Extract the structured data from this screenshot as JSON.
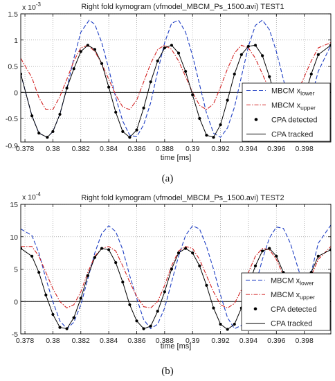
{
  "chart_data": [
    {
      "type": "line",
      "title": "Right fold kymogram (vfmodel_MBCM_Ps_1500.avi) TEST1",
      "xlabel": "time [ms]",
      "ylabel": "",
      "y_multiplier": "x 10",
      "y_exponent": "-3",
      "caption": "(a)",
      "xlim": [
        0.3777,
        0.3999
      ],
      "ylim": [
        -0.95,
        1.5
      ],
      "xticks": [
        0.378,
        0.38,
        0.382,
        0.384,
        0.386,
        0.388,
        0.39,
        0.392,
        0.394,
        0.396,
        0.398
      ],
      "xtick_labels": [
        "0.378",
        "0.38",
        "0.382",
        "0.384",
        "0.386",
        "0.388",
        "0.39",
        "0.392",
        "0.394",
        "0.396",
        "0.398"
      ],
      "yticks": [
        -0.5,
        0,
        0.5,
        1,
        1.5
      ],
      "ytick_labels": [
        "-0.5",
        "0",
        "0.5",
        "1",
        "1.5"
      ],
      "ytick_extra_bottom": "-0.9",
      "grid": true,
      "legend_position": "right",
      "period": 0.00615,
      "series": [
        {
          "name": "MBCM x",
          "subscript": "lower",
          "color": "#1f3fc4",
          "style": "dashed",
          "x": [
            0.3777,
            0.3785,
            0.379,
            0.3796,
            0.38,
            0.3805,
            0.381,
            0.3815,
            0.382,
            0.3826,
            0.383,
            0.3835,
            0.384,
            0.3845,
            0.385,
            0.3855,
            0.386,
            0.3865,
            0.387,
            0.3875,
            0.388,
            0.3885,
            0.389,
            0.3895,
            0.39,
            0.3905,
            0.391,
            0.3915,
            0.392,
            0.3925,
            0.393,
            0.3935,
            0.394,
            0.3945,
            0.395,
            0.3955,
            0.396,
            0.3965,
            0.397,
            0.3975,
            0.398,
            0.3985,
            0.399,
            0.3999
          ],
          "y": [
            0.35,
            -0.45,
            -0.78,
            -0.86,
            -0.75,
            -0.42,
            0.08,
            0.65,
            1.15,
            1.38,
            1.3,
            0.95,
            0.45,
            -0.1,
            -0.55,
            -0.82,
            -0.85,
            -0.62,
            -0.2,
            0.4,
            0.95,
            1.32,
            1.38,
            1.15,
            0.7,
            0.15,
            -0.4,
            -0.78,
            -0.86,
            -0.68,
            -0.28,
            0.3,
            0.88,
            1.28,
            1.38,
            1.2,
            0.78,
            0.25,
            -0.3,
            -0.7,
            -0.62,
            -0.1,
            0.4,
            0.9
          ]
        },
        {
          "name": "MBCM x",
          "subscript": "upper",
          "color": "#d22020",
          "style": "dashdot",
          "x": [
            0.3777,
            0.3785,
            0.379,
            0.3795,
            0.38,
            0.3805,
            0.381,
            0.3815,
            0.382,
            0.3825,
            0.383,
            0.3835,
            0.384,
            0.3845,
            0.385,
            0.3855,
            0.386,
            0.3865,
            0.387,
            0.3875,
            0.388,
            0.3885,
            0.389,
            0.3895,
            0.39,
            0.3905,
            0.391,
            0.3915,
            0.392,
            0.3925,
            0.393,
            0.3935,
            0.394,
            0.3945,
            0.395,
            0.3955,
            0.396,
            0.3965,
            0.397,
            0.3975,
            0.398,
            0.3985,
            0.399,
            0.3999
          ],
          "y": [
            0.65,
            0.28,
            -0.1,
            -0.33,
            -0.33,
            -0.08,
            0.25,
            0.6,
            0.85,
            0.9,
            0.78,
            0.55,
            0.25,
            -0.05,
            -0.28,
            -0.33,
            -0.15,
            0.2,
            0.55,
            0.82,
            0.9,
            0.82,
            0.6,
            0.3,
            0.0,
            -0.25,
            -0.33,
            -0.22,
            0.1,
            0.45,
            0.75,
            0.9,
            0.85,
            0.65,
            0.35,
            0.05,
            -0.22,
            -0.33,
            -0.25,
            0.0,
            0.3,
            0.6,
            0.85,
            0.95
          ]
        },
        {
          "name": "CPA detected",
          "color": "#000000",
          "style": "markers",
          "x": [
            0.3777,
            0.3785,
            0.379,
            0.3796,
            0.38,
            0.3805,
            0.381,
            0.3815,
            0.382,
            0.3825,
            0.383,
            0.3835,
            0.384,
            0.3845,
            0.385,
            0.3855,
            0.386,
            0.3865,
            0.387,
            0.3875,
            0.388,
            0.3885,
            0.389,
            0.3895,
            0.39,
            0.3905,
            0.391,
            0.3915,
            0.392,
            0.3925,
            0.393,
            0.3935,
            0.394,
            0.3945,
            0.395,
            0.3955,
            0.396,
            0.3965,
            0.397,
            0.3975,
            0.398,
            0.3985,
            0.399,
            0.3999
          ],
          "y": [
            0.35,
            -0.45,
            -0.78,
            -0.86,
            -0.75,
            -0.42,
            0.08,
            0.45,
            0.78,
            0.9,
            0.82,
            0.55,
            0.1,
            -0.38,
            -0.75,
            -0.86,
            -0.72,
            -0.3,
            0.2,
            0.6,
            0.85,
            0.9,
            0.75,
            0.4,
            -0.05,
            -0.5,
            -0.82,
            -0.86,
            -0.62,
            -0.15,
            0.35,
            0.72,
            0.88,
            0.9,
            0.7,
            0.3,
            -0.15,
            -0.58,
            -0.8,
            -0.62,
            -0.1,
            0.35,
            0.72,
            0.9
          ]
        },
        {
          "name": "CPA tracked",
          "color": "#000000",
          "style": "solid",
          "x": [
            0.3777,
            0.3785,
            0.379,
            0.3796,
            0.38,
            0.3805,
            0.381,
            0.3815,
            0.382,
            0.3825,
            0.383,
            0.3835,
            0.384,
            0.3845,
            0.385,
            0.3855,
            0.386,
            0.3865,
            0.387,
            0.3875,
            0.388,
            0.3885,
            0.389,
            0.3895,
            0.39,
            0.3905,
            0.391,
            0.3915,
            0.392,
            0.3925,
            0.393,
            0.3935,
            0.394,
            0.3945,
            0.395,
            0.3955,
            0.396,
            0.3965,
            0.397,
            0.3975,
            0.398,
            0.3985,
            0.399,
            0.3999
          ],
          "y": [
            0.35,
            -0.45,
            -0.78,
            -0.86,
            -0.75,
            -0.42,
            0.08,
            0.45,
            0.78,
            0.9,
            0.82,
            0.55,
            0.1,
            -0.38,
            -0.75,
            -0.86,
            -0.72,
            -0.3,
            0.2,
            0.6,
            0.85,
            0.9,
            0.75,
            0.4,
            -0.05,
            -0.5,
            -0.82,
            -0.86,
            -0.62,
            -0.15,
            0.35,
            0.72,
            0.88,
            0.9,
            0.7,
            0.3,
            -0.15,
            -0.58,
            -0.8,
            -0.62,
            -0.1,
            0.35,
            0.72,
            0.9
          ]
        }
      ]
    },
    {
      "type": "line",
      "title": "Right fold kymogram (vfmodel_MBCM_Ps_1500.avi) TEST2",
      "xlabel": "time [ms]",
      "ylabel": "",
      "y_multiplier": "x 10",
      "y_exponent": "-4",
      "caption": "(b)",
      "xlim": [
        0.3777,
        0.3999
      ],
      "ylim": [
        -5,
        15
      ],
      "xticks": [
        0.378,
        0.38,
        0.382,
        0.384,
        0.386,
        0.388,
        0.39,
        0.392,
        0.394,
        0.396,
        0.398
      ],
      "xtick_labels": [
        "0.378",
        "0.38",
        "0.382",
        "0.384",
        "0.386",
        "0.388",
        "0.39",
        "0.392",
        "0.394",
        "0.396",
        "0.398"
      ],
      "yticks": [
        -5,
        0,
        5,
        10,
        15
      ],
      "ytick_labels": [
        "-5",
        "0",
        "5",
        "10",
        "15"
      ],
      "grid": true,
      "legend_position": "bottom-right",
      "series": [
        {
          "name": "MBCM x",
          "subscript": "lower",
          "color": "#1f3fc4",
          "style": "dashed",
          "x": [
            0.3777,
            0.3785,
            0.379,
            0.3795,
            0.38,
            0.3805,
            0.381,
            0.3815,
            0.382,
            0.3825,
            0.383,
            0.3835,
            0.384,
            0.3845,
            0.385,
            0.3855,
            0.386,
            0.3865,
            0.387,
            0.3875,
            0.388,
            0.3885,
            0.389,
            0.3895,
            0.39,
            0.3905,
            0.391,
            0.3915,
            0.392,
            0.3925,
            0.393,
            0.3935,
            0.394,
            0.3945,
            0.395,
            0.3955,
            0.396,
            0.3965,
            0.397,
            0.3975,
            0.398,
            0.3985,
            0.399,
            0.3999
          ],
          "y": [
            11.2,
            10.2,
            7.5,
            3.5,
            0.0,
            -3.0,
            -4.2,
            -3.2,
            -0.5,
            3.5,
            7.5,
            10.5,
            11.7,
            10.8,
            8.0,
            4.0,
            0.5,
            -2.8,
            -4.2,
            -3.5,
            -1.0,
            3.0,
            7.0,
            10.2,
            11.7,
            11.2,
            8.5,
            5.0,
            1.0,
            -2.5,
            -4.2,
            -3.7,
            -1.5,
            2.5,
            6.5,
            9.8,
            11.5,
            11.3,
            9.0,
            5.5,
            2.0,
            4.5,
            9.0,
            11.8
          ]
        },
        {
          "name": "MBCM x",
          "subscript": "upper",
          "color": "#d22020",
          "style": "dashdot",
          "x": [
            0.3777,
            0.3785,
            0.379,
            0.3795,
            0.38,
            0.3805,
            0.381,
            0.3815,
            0.382,
            0.3825,
            0.383,
            0.3835,
            0.384,
            0.3845,
            0.385,
            0.3855,
            0.386,
            0.3865,
            0.387,
            0.3875,
            0.388,
            0.3885,
            0.389,
            0.3895,
            0.39,
            0.3905,
            0.391,
            0.3915,
            0.392,
            0.3925,
            0.393,
            0.3935,
            0.394,
            0.3945,
            0.395,
            0.3955,
            0.396,
            0.3965,
            0.397,
            0.3975,
            0.398,
            0.3985,
            0.399,
            0.3999
          ],
          "y": [
            8.5,
            8.5,
            7.0,
            4.5,
            2.0,
            0.0,
            -1.0,
            -0.5,
            1.5,
            4.5,
            7.0,
            8.2,
            8.5,
            7.8,
            5.5,
            3.0,
            0.8,
            -0.8,
            -1.0,
            0.0,
            2.5,
            5.5,
            7.8,
            8.5,
            8.2,
            6.5,
            4.0,
            1.5,
            -0.5,
            -1.0,
            -0.3,
            1.8,
            4.5,
            7.0,
            8.2,
            8.0,
            6.5,
            4.0,
            1.5,
            0.0,
            1.5,
            4.0,
            6.5,
            8.5
          ]
        },
        {
          "name": "CPA detected",
          "color": "#000000",
          "style": "markers",
          "x": [
            0.3777,
            0.3785,
            0.379,
            0.3795,
            0.38,
            0.3805,
            0.381,
            0.3815,
            0.382,
            0.3825,
            0.383,
            0.3835,
            0.384,
            0.3845,
            0.385,
            0.3855,
            0.386,
            0.3865,
            0.387,
            0.3875,
            0.388,
            0.3885,
            0.389,
            0.3895,
            0.39,
            0.3905,
            0.391,
            0.3915,
            0.392,
            0.3925,
            0.393,
            0.3935,
            0.394,
            0.3945,
            0.395,
            0.3955,
            0.396,
            0.3965,
            0.397,
            0.3975,
            0.398,
            0.3985,
            0.399,
            0.3999
          ],
          "y": [
            8.2,
            7.0,
            4.5,
            1.0,
            -2.0,
            -4.0,
            -4.2,
            -2.5,
            0.5,
            4.0,
            6.8,
            8.2,
            8.0,
            6.0,
            3.0,
            -0.5,
            -3.0,
            -4.2,
            -3.8,
            -1.5,
            1.5,
            5.0,
            7.5,
            8.2,
            7.5,
            5.5,
            2.5,
            -1.0,
            -3.5,
            -4.3,
            -3.5,
            -1.0,
            2.5,
            5.5,
            7.8,
            8.2,
            7.0,
            4.5,
            1.5,
            -1.5,
            1.0,
            4.5,
            7.0,
            8.0
          ]
        },
        {
          "name": "CPA tracked",
          "color": "#000000",
          "style": "solid",
          "x": [
            0.3777,
            0.3785,
            0.379,
            0.3795,
            0.38,
            0.3805,
            0.381,
            0.3815,
            0.382,
            0.3825,
            0.383,
            0.3835,
            0.384,
            0.3845,
            0.385,
            0.3855,
            0.386,
            0.3865,
            0.387,
            0.3875,
            0.388,
            0.3885,
            0.389,
            0.3895,
            0.39,
            0.3905,
            0.391,
            0.3915,
            0.392,
            0.3925,
            0.393,
            0.3935,
            0.394,
            0.3945,
            0.395,
            0.3955,
            0.396,
            0.3965,
            0.397,
            0.3975,
            0.398,
            0.3985,
            0.399,
            0.3999
          ],
          "y": [
            8.2,
            7.0,
            4.5,
            1.0,
            -2.0,
            -4.0,
            -4.2,
            -2.5,
            0.5,
            4.0,
            6.8,
            8.2,
            8.0,
            6.0,
            3.0,
            -0.5,
            -3.0,
            -4.2,
            -3.8,
            -1.5,
            1.5,
            5.0,
            7.5,
            8.2,
            7.5,
            5.5,
            2.5,
            -1.0,
            -3.5,
            -4.3,
            -3.5,
            -1.0,
            2.5,
            5.5,
            7.8,
            8.2,
            7.0,
            4.5,
            1.5,
            -1.5,
            1.0,
            4.5,
            7.0,
            8.0
          ]
        }
      ]
    }
  ]
}
